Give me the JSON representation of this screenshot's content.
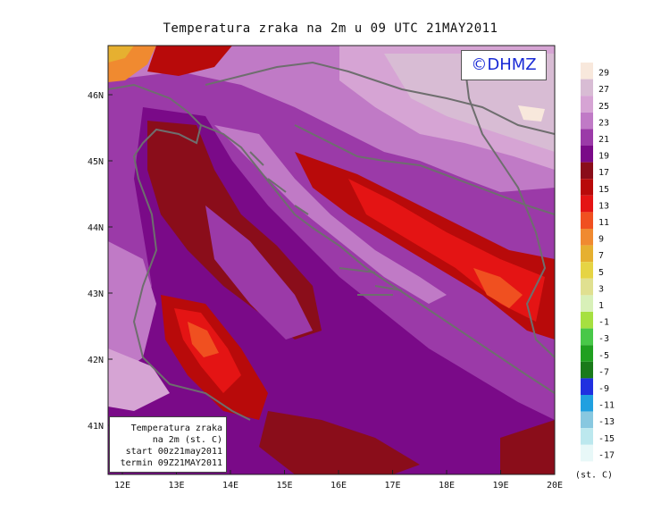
{
  "title": "Temperatura zraka na 2m u 09 UTC 21MAY2011",
  "copyright": "©DHMZ",
  "info_box": {
    "line1": "Temperatura zraka",
    "line2": "na 2m (st. C)",
    "line3": "start 00z21may2011",
    "line4": "termin 09Z21MAY2011"
  },
  "axes": {
    "x_ticks": [
      "12E",
      "13E",
      "14E",
      "15E",
      "16E",
      "17E",
      "18E",
      "19E",
      "20E"
    ],
    "y_ticks": [
      "46N",
      "45N",
      "44N",
      "43N",
      "42N",
      "41N"
    ]
  },
  "legend": {
    "unit": "(st. C)",
    "levels": [
      "29",
      "27",
      "25",
      "23",
      "21",
      "19",
      "17",
      "15",
      "13",
      "11",
      "9",
      "7",
      "5",
      "3",
      "1",
      "-1",
      "-3",
      "-5",
      "-7",
      "-9",
      "-11",
      "-13",
      "-15",
      "-17"
    ],
    "colors": [
      "#f8e8dc",
      "#d8bcd4",
      "#d6a4d4",
      "#c07ac6",
      "#9b3aa8",
      "#7a0a88",
      "#8a0d1a",
      "#b80a0a",
      "#e41414",
      "#f05020",
      "#f08a30",
      "#e6b030",
      "#e6d444",
      "#e0e090",
      "#d8f0b8",
      "#a6e040",
      "#48c848",
      "#20a020",
      "#1a7a1a",
      "#2030e0",
      "#20a0e0",
      "#88c8e0",
      "#bce8ee",
      "#e8f8f8"
    ]
  }
}
